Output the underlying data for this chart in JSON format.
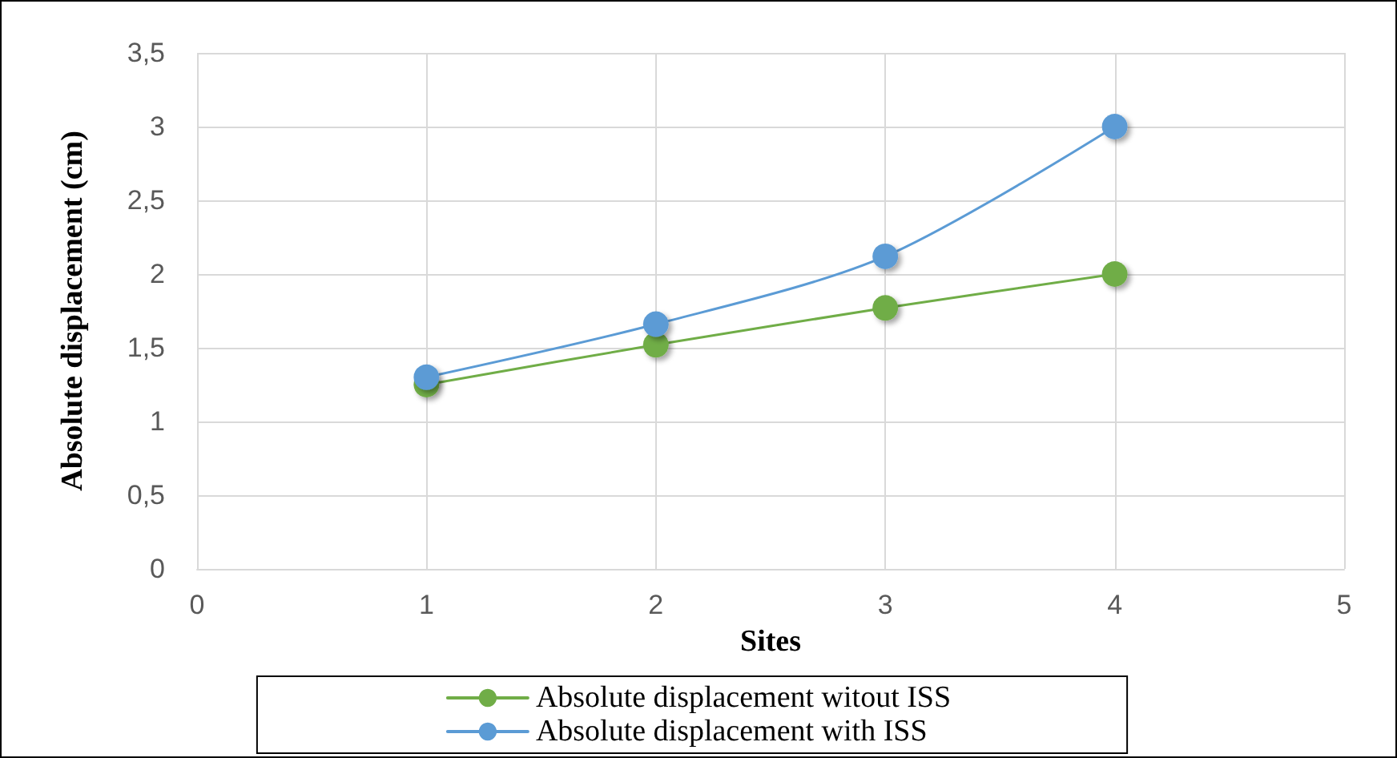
{
  "chart_data": {
    "type": "line",
    "xlabel": "Sites",
    "ylabel": "Absolute displacement (cm)",
    "x": [
      1,
      2,
      3,
      4
    ],
    "series": [
      {
        "name": "Absolute displacement witout ISS",
        "color": "#70ad47",
        "values": [
          1.25,
          1.52,
          1.77,
          2.0
        ]
      },
      {
        "name": "Absolute displacement with ISS",
        "color": "#5b9bd5",
        "values": [
          1.3,
          1.66,
          2.12,
          3.0
        ]
      }
    ],
    "xlim": [
      0,
      5
    ],
    "xticks": [
      0,
      1,
      2,
      3,
      4,
      5
    ],
    "ylim": [
      0,
      3.5
    ],
    "yticks": [
      0,
      {
        "value": 0.5,
        "label": "0,5"
      },
      1,
      {
        "value": 1.5,
        "label": "1,5"
      },
      2,
      {
        "value": 2.5,
        "label": "2,5"
      },
      3,
      {
        "value": 3.5,
        "label": "3,5"
      }
    ],
    "grid": true,
    "legend": "bottom",
    "marker": "circle",
    "line_style": "solid"
  }
}
